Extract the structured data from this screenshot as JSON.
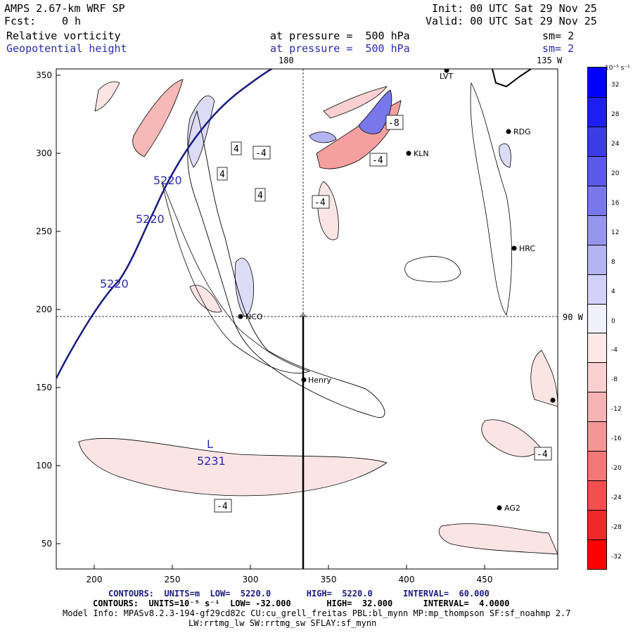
{
  "header": {
    "model": "AMPS 2.67-km WRF SP",
    "init": "Init: 00 UTC Sat 29 Nov 25",
    "fcst_label": "Fcst:",
    "fcst_value": "0 h",
    "valid": "Valid: 00 UTC Sat 29 Nov 25",
    "field1": "Relative vorticity",
    "field1_level": "at pressure =  500 hPa",
    "field1_sm": "sm= 2",
    "field2": "Geopotential height",
    "field2_level": "at pressure =  500 hPa",
    "field2_sm": "sm= 2"
  },
  "map": {
    "meridian_top": "180",
    "meridian_top_right": "135 W",
    "meridian_right": "90 W",
    "stations": [
      "LVT",
      "RDG",
      "KLN",
      "HRC",
      "NCO",
      "Henry",
      "AG2"
    ],
    "height_labels": [
      "5220",
      "5220",
      "5220",
      "5231"
    ],
    "low_marker": "L",
    "vort_labels": [
      "4",
      "-4",
      "4",
      "4",
      "-4",
      "-8",
      "-4",
      "-4",
      "-4"
    ]
  },
  "axes": {
    "x_ticks": [
      "200",
      "250",
      "300",
      "350",
      "400",
      "450"
    ],
    "y_ticks": [
      "350",
      "300",
      "250",
      "200",
      "150",
      "100",
      "50"
    ]
  },
  "colorbar": {
    "unit": "10⁻⁵ s⁻¹",
    "tick_labels": [
      "32",
      "28",
      "24",
      "20",
      "16",
      "12",
      "8",
      "4",
      "0",
      "-4",
      "-8",
      "-12",
      "-16",
      "-20",
      "-24",
      "-28",
      "-32"
    ],
    "colors": [
      "#0000ff",
      "#1e1ef2",
      "#3c3ce6",
      "#5a5ae6",
      "#7878ea",
      "#9696ee",
      "#b4b4f2",
      "#d2d2f8",
      "#f0f0fc",
      "#fde8e8",
      "#fad0d0",
      "#f7b4b4",
      "#f49696",
      "#f27878",
      "#f05050",
      "#f02828",
      "#ff0000"
    ]
  },
  "footer": {
    "contours1": "CONTOURS:  UNITS=m  LOW=  5220.0       HIGH=  5220.0      INTERVAL=  60.000",
    "contours2": "CONTOURS:  UNITS=10⁻⁵ s⁻¹  LOW= -32.000       HIGH=  32.000      INTERVAL=  4.0000",
    "model_info": "Model Info: MPASv8.2.3-194-gf29cd82c CU:cu_grell_freitas PBL:bl_mynn MP:mp_thompson SF:sf_noahmp 2.7",
    "model_info2": "LW:rrtmg_lw SW:rrtmg_sw SFLAY:sf_mynn"
  }
}
